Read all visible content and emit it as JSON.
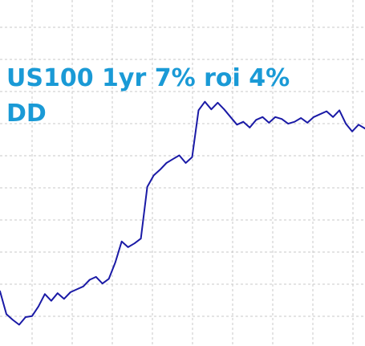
{
  "chart_data": {
    "type": "line",
    "title_lines": [
      "US100 1yr 7% roi 4%",
      "DD"
    ],
    "xlabel": "",
    "ylabel": "",
    "grid": true,
    "legend": "none",
    "x": [
      0,
      1,
      2,
      3,
      4,
      5,
      6,
      7,
      8,
      9,
      10,
      11,
      12,
      13,
      14,
      15,
      16,
      17,
      18,
      19,
      20,
      21,
      22,
      23,
      24,
      25,
      26,
      27,
      28,
      29,
      30,
      31,
      32,
      33,
      34,
      35,
      36,
      37,
      38,
      39,
      40,
      41,
      42,
      43,
      44,
      45,
      46,
      47,
      48,
      49,
      50,
      51,
      52,
      53,
      54,
      55,
      56,
      57
    ],
    "series": [
      {
        "color": "#1a1aa6",
        "values": [
          38,
          14,
          8,
          3,
          11,
          12,
          22,
          35,
          28,
          36,
          30,
          37,
          40,
          43,
          50,
          53,
          46,
          51,
          68,
          90,
          84,
          88,
          93,
          147,
          159,
          165,
          172,
          176,
          180,
          172,
          178,
          227,
          236,
          228,
          235,
          228,
          220,
          212,
          215,
          209,
          217,
          220,
          214,
          220,
          218,
          213,
          215,
          219,
          214,
          220,
          223,
          226,
          220,
          227,
          213,
          205,
          212,
          208
        ]
      }
    ],
    "ylim": [
      -10,
      250
    ],
    "grid_x_count": 9,
    "grid_y_count": 10,
    "title_color": "#1a9ad6"
  }
}
